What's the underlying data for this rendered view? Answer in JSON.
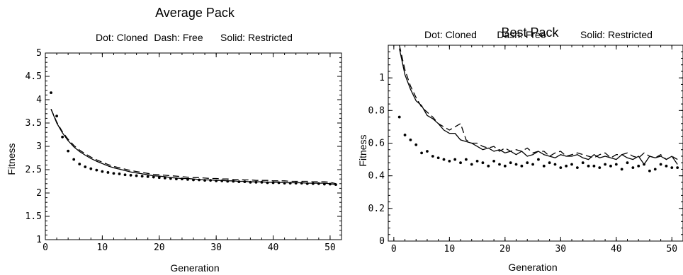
{
  "chart_data": [
    {
      "type": "scatter",
      "title": "Average Pack",
      "subtitle": [
        "Dot: Cloned",
        "Dash: Free",
        "Solid: Restricted"
      ],
      "xlabel": "Generation",
      "ylabel": "Fitness",
      "xlim": [
        0,
        52
      ],
      "ylim": [
        1,
        5
      ],
      "xticks": [
        "0",
        "10",
        "20",
        "30",
        "40",
        "50"
      ],
      "yticks": [
        "1",
        "1.5",
        "2",
        "2.5",
        "3",
        "3.5",
        "4",
        "4.5",
        "5"
      ],
      "series": [
        {
          "name": "Cloned",
          "style": "dot",
          "x": [
            1,
            2,
            3,
            4,
            5,
            6,
            7,
            8,
            9,
            10,
            11,
            12,
            13,
            14,
            15,
            16,
            17,
            18,
            19,
            20,
            21,
            22,
            23,
            24,
            25,
            26,
            27,
            28,
            29,
            30,
            31,
            32,
            33,
            34,
            35,
            36,
            37,
            38,
            39,
            40,
            41,
            42,
            43,
            44,
            45,
            46,
            47,
            48,
            49,
            50,
            51
          ],
          "y": [
            4.15,
            3.65,
            3.2,
            2.9,
            2.72,
            2.62,
            2.56,
            2.52,
            2.49,
            2.46,
            2.44,
            2.42,
            2.41,
            2.39,
            2.38,
            2.37,
            2.36,
            2.35,
            2.34,
            2.33,
            2.32,
            2.31,
            2.3,
            2.3,
            2.29,
            2.28,
            2.28,
            2.27,
            2.27,
            2.26,
            2.26,
            2.25,
            2.25,
            2.24,
            2.24,
            2.23,
            2.23,
            2.23,
            2.22,
            2.22,
            2.22,
            2.21,
            2.21,
            2.21,
            2.21,
            2.2,
            2.2,
            2.2,
            2.19,
            2.19,
            2.18
          ]
        },
        {
          "name": "Free",
          "style": "dash",
          "x": [
            1,
            2,
            3,
            4,
            5,
            6,
            7,
            8,
            9,
            10,
            11,
            12,
            13,
            14,
            15,
            16,
            17,
            18,
            19,
            20,
            21,
            22,
            23,
            24,
            25,
            26,
            27,
            28,
            29,
            30,
            31,
            32,
            33,
            34,
            35,
            36,
            37,
            38,
            39,
            40,
            41,
            42,
            43,
            44,
            45,
            46,
            47,
            48,
            49,
            50,
            51
          ],
          "y": [
            3.8,
            3.52,
            3.31,
            3.15,
            3.02,
            2.92,
            2.84,
            2.77,
            2.71,
            2.66,
            2.61,
            2.57,
            2.54,
            2.51,
            2.48,
            2.46,
            2.44,
            2.42,
            2.4,
            2.39,
            2.38,
            2.37,
            2.36,
            2.35,
            2.34,
            2.33,
            2.33,
            2.32,
            2.31,
            2.31,
            2.3,
            2.3,
            2.29,
            2.29,
            2.28,
            2.28,
            2.27,
            2.27,
            2.27,
            2.26,
            2.26,
            2.26,
            2.25,
            2.25,
            2.25,
            2.25,
            2.24,
            2.24,
            2.24,
            2.23,
            2.2
          ]
        },
        {
          "name": "Restricted",
          "style": "solid",
          "x": [
            1,
            2,
            3,
            4,
            5,
            6,
            7,
            8,
            9,
            10,
            11,
            12,
            13,
            14,
            15,
            16,
            17,
            18,
            19,
            20,
            21,
            22,
            23,
            24,
            25,
            26,
            27,
            28,
            29,
            30,
            31,
            32,
            33,
            34,
            35,
            36,
            37,
            38,
            39,
            40,
            41,
            42,
            43,
            44,
            45,
            46,
            47,
            48,
            49,
            50,
            51
          ],
          "y": [
            3.8,
            3.5,
            3.29,
            3.12,
            2.99,
            2.89,
            2.81,
            2.74,
            2.68,
            2.63,
            2.58,
            2.54,
            2.51,
            2.48,
            2.45,
            2.43,
            2.41,
            2.39,
            2.37,
            2.36,
            2.35,
            2.33,
            2.32,
            2.31,
            2.31,
            2.3,
            2.29,
            2.28,
            2.28,
            2.27,
            2.27,
            2.26,
            2.26,
            2.25,
            2.25,
            2.24,
            2.24,
            2.24,
            2.23,
            2.23,
            2.23,
            2.22,
            2.22,
            2.22,
            2.22,
            2.21,
            2.21,
            2.21,
            2.21,
            2.2,
            2.18
          ]
        }
      ],
      "grid": false
    },
    {
      "type": "scatter",
      "title": "Best Pack",
      "subtitle": [
        "Dot: Cloned",
        "Dash: Free",
        "Solid: Restricted"
      ],
      "xlabel": "Generation",
      "ylabel": "Fitness",
      "xlim": [
        -1,
        52
      ],
      "ylim": [
        0,
        1.2
      ],
      "xticks": [
        "0",
        "10",
        "20",
        "30",
        "40",
        "50"
      ],
      "yticks": [
        "0",
        "0.2",
        "0.4",
        "0.6",
        "0.8",
        "1"
      ],
      "series": [
        {
          "name": "Cloned",
          "style": "dot",
          "x": [
            1,
            2,
            3,
            4,
            5,
            6,
            7,
            8,
            9,
            10,
            11,
            12,
            13,
            14,
            15,
            16,
            17,
            18,
            19,
            20,
            21,
            22,
            23,
            24,
            25,
            26,
            27,
            28,
            29,
            30,
            31,
            32,
            33,
            34,
            35,
            36,
            37,
            38,
            39,
            40,
            41,
            42,
            43,
            44,
            45,
            46,
            47,
            48,
            49,
            50,
            51
          ],
          "y": [
            0.76,
            0.65,
            0.62,
            0.59,
            0.54,
            0.55,
            0.52,
            0.51,
            0.5,
            0.49,
            0.5,
            0.48,
            0.5,
            0.47,
            0.49,
            0.48,
            0.46,
            0.49,
            0.47,
            0.46,
            0.48,
            0.47,
            0.46,
            0.48,
            0.47,
            0.5,
            0.46,
            0.48,
            0.47,
            0.45,
            0.46,
            0.47,
            0.45,
            0.48,
            0.46,
            0.46,
            0.45,
            0.47,
            0.46,
            0.47,
            0.44,
            0.48,
            0.45,
            0.46,
            0.47,
            0.43,
            0.44,
            0.47,
            0.46,
            0.45,
            0.45
          ]
        },
        {
          "name": "Free",
          "style": "dash",
          "x": [
            1,
            2,
            3,
            4,
            5,
            6,
            7,
            8,
            9,
            10,
            11,
            12,
            13,
            14,
            15,
            16,
            17,
            18,
            19,
            20,
            21,
            22,
            23,
            24,
            25,
            26,
            27,
            28,
            29,
            30,
            31,
            32,
            33,
            34,
            35,
            36,
            37,
            38,
            39,
            40,
            41,
            42,
            43,
            44,
            45,
            46,
            47,
            48,
            49,
            50,
            51
          ],
          "y": [
            1.2,
            1.05,
            0.95,
            0.88,
            0.82,
            0.79,
            0.76,
            0.72,
            0.7,
            0.68,
            0.7,
            0.72,
            0.62,
            0.6,
            0.6,
            0.58,
            0.57,
            0.58,
            0.55,
            0.57,
            0.55,
            0.56,
            0.55,
            0.57,
            0.54,
            0.55,
            0.55,
            0.52,
            0.54,
            0.55,
            0.52,
            0.53,
            0.54,
            0.53,
            0.52,
            0.51,
            0.53,
            0.54,
            0.51,
            0.53,
            0.53,
            0.54,
            0.52,
            0.51,
            0.54,
            0.52,
            0.51,
            0.53,
            0.5,
            0.52,
            0.5
          ]
        },
        {
          "name": "Restricted",
          "style": "solid",
          "x": [
            1,
            2,
            3,
            4,
            5,
            6,
            7,
            8,
            9,
            10,
            11,
            12,
            13,
            14,
            15,
            16,
            17,
            18,
            19,
            20,
            21,
            22,
            23,
            24,
            25,
            26,
            27,
            28,
            29,
            30,
            31,
            32,
            33,
            34,
            35,
            36,
            37,
            38,
            39,
            40,
            41,
            42,
            43,
            44,
            45,
            46,
            47,
            48,
            49,
            50,
            51
          ],
          "y": [
            1.18,
            1.02,
            0.93,
            0.86,
            0.83,
            0.77,
            0.75,
            0.72,
            0.68,
            0.66,
            0.66,
            0.62,
            0.61,
            0.6,
            0.58,
            0.56,
            0.57,
            0.55,
            0.56,
            0.54,
            0.55,
            0.53,
            0.55,
            0.52,
            0.53,
            0.55,
            0.53,
            0.52,
            0.51,
            0.53,
            0.52,
            0.52,
            0.53,
            0.51,
            0.5,
            0.53,
            0.51,
            0.52,
            0.51,
            0.5,
            0.53,
            0.51,
            0.5,
            0.52,
            0.47,
            0.52,
            0.51,
            0.52,
            0.5,
            0.52,
            0.47
          ]
        }
      ],
      "grid": false
    }
  ]
}
